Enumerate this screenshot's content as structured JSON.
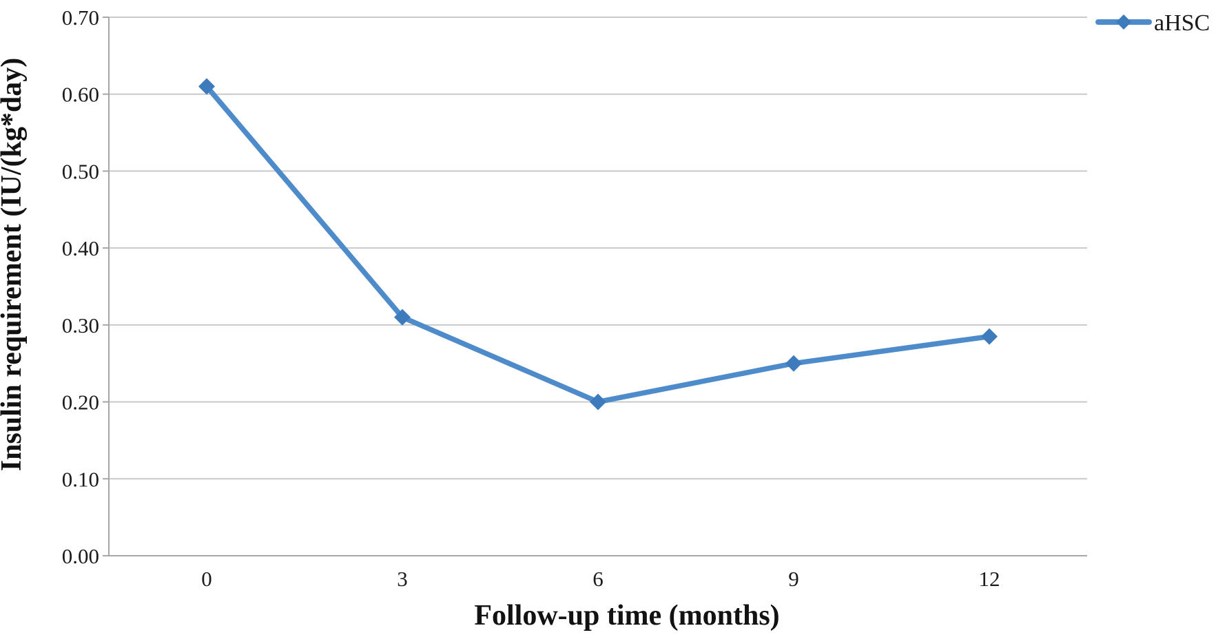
{
  "chart": {
    "background": "#ffffff",
    "series_color": "#4e8bcb",
    "marker_color": "#3d7bbd",
    "gridline_color": "#c9c9c9",
    "axis_color": "#a6a6a6",
    "text_color": "#1b1b1b"
  },
  "chart_data": {
    "type": "line",
    "title": "",
    "xlabel": "Follow-up time (months)",
    "ylabel": "Insulin requirement (IU/(kg*day)",
    "categories": [
      "0",
      "3",
      "6",
      "9",
      "12"
    ],
    "series": [
      {
        "name": "aHSC",
        "values": [
          0.61,
          0.31,
          0.2,
          0.25,
          0.285
        ]
      }
    ],
    "ylim": [
      0.0,
      0.7
    ],
    "ytick_step": 0.1,
    "ytick_labels": [
      "0.00",
      "0.10",
      "0.20",
      "0.30",
      "0.40",
      "0.50",
      "0.60",
      "0.70"
    ],
    "grid": true,
    "marker": "diamond",
    "legend_position": "top-right"
  }
}
